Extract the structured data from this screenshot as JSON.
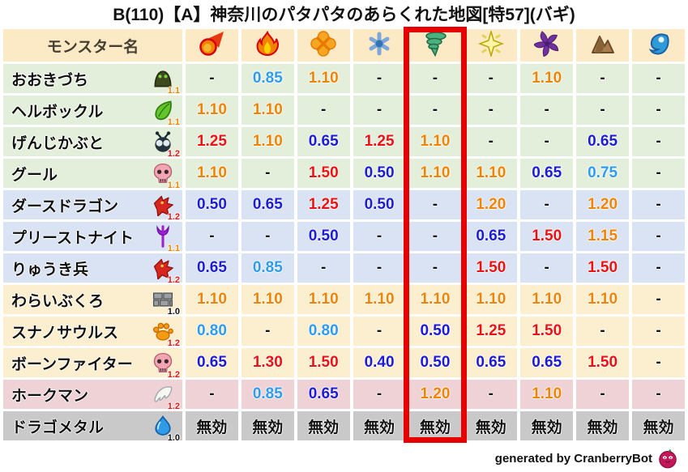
{
  "title": "B(110)【A】神奈川のパタパタのあらくれた地図[特57](バギ)",
  "colors": {
    "or": "#F08300",
    "rd": "#ED1111",
    "lb": "#2D9BF0",
    "db": "#1B1BD8",
    "k": "#111111"
  },
  "row_backgrounds": {
    "header": "#FBEAC5",
    "green": "#E4EFDB",
    "blue": "#DAE3F3",
    "tan": "#FCEFCF",
    "pink": "#EFD2D5",
    "gray": "#C9C9C9"
  },
  "highlight_color": "#E60000",
  "chart_data": {
    "type": "table",
    "title": "B(110)【A】神奈川のパタパタのあらくれた地図[特57](バギ)",
    "name_header": "モンスター名",
    "element_icons": [
      "fireball-icon",
      "flame-icon",
      "burst-icon",
      "snowflake-icon",
      "tornado-icon",
      "sparkle-icon",
      "pinwheel-icon",
      "mountain-icon",
      "wave-icon"
    ],
    "highlighted_column_index": 4,
    "highlighted_column_icon": "tornado-icon",
    "rows": [
      {
        "name": "おおきづち",
        "icon": "hood-monster-icon",
        "level": "1.1",
        "level_color": "or",
        "bg": "green",
        "values": [
          [
            "-",
            "k"
          ],
          [
            "0.85",
            "lb"
          ],
          [
            "1.10",
            "or"
          ],
          [
            "-",
            "k"
          ],
          [
            "-",
            "k"
          ],
          [
            "-",
            "k"
          ],
          [
            "1.10",
            "or"
          ],
          [
            "-",
            "k"
          ],
          [
            "-",
            "k"
          ]
        ]
      },
      {
        "name": "ヘルボックル",
        "icon": "leaf-icon",
        "level": "1.1",
        "level_color": "or",
        "bg": "green",
        "values": [
          [
            "1.10",
            "or"
          ],
          [
            "1.10",
            "or"
          ],
          [
            "-",
            "k"
          ],
          [
            "-",
            "k"
          ],
          [
            "-",
            "k"
          ],
          [
            "-",
            "k"
          ],
          [
            "-",
            "k"
          ],
          [
            "-",
            "k"
          ],
          [
            "-",
            "k"
          ]
        ]
      },
      {
        "name": "げんじかぶと",
        "icon": "beetle-icon",
        "level": "1.2",
        "level_color": "rd",
        "bg": "green",
        "values": [
          [
            "1.25",
            "rd"
          ],
          [
            "1.10",
            "or"
          ],
          [
            "0.65",
            "db"
          ],
          [
            "1.25",
            "rd"
          ],
          [
            "1.10",
            "or"
          ],
          [
            "-",
            "k"
          ],
          [
            "-",
            "k"
          ],
          [
            "0.65",
            "db"
          ],
          [
            "-",
            "k"
          ]
        ]
      },
      {
        "name": "グール",
        "icon": "skull-icon",
        "level": "1.1",
        "level_color": "or",
        "bg": "green",
        "values": [
          [
            "1.10",
            "or"
          ],
          [
            "-",
            "k"
          ],
          [
            "1.50",
            "rd"
          ],
          [
            "0.50",
            "db"
          ],
          [
            "1.10",
            "or"
          ],
          [
            "1.10",
            "or"
          ],
          [
            "0.65",
            "db"
          ],
          [
            "0.75",
            "lb"
          ],
          [
            "-",
            "k"
          ]
        ]
      },
      {
        "name": "ダースドラゴン",
        "icon": "dragon-icon",
        "level": "1.2",
        "level_color": "rd",
        "bg": "blue",
        "values": [
          [
            "0.50",
            "db"
          ],
          [
            "0.65",
            "db"
          ],
          [
            "1.25",
            "rd"
          ],
          [
            "0.50",
            "db"
          ],
          [
            "-",
            "k"
          ],
          [
            "1.20",
            "or"
          ],
          [
            "-",
            "k"
          ],
          [
            "1.20",
            "or"
          ],
          [
            "-",
            "k"
          ]
        ]
      },
      {
        "name": "プリーストナイト",
        "icon": "trident-icon",
        "level": "1.1",
        "level_color": "or",
        "bg": "blue",
        "values": [
          [
            "-",
            "k"
          ],
          [
            "-",
            "k"
          ],
          [
            "0.50",
            "db"
          ],
          [
            "-",
            "k"
          ],
          [
            "-",
            "k"
          ],
          [
            "0.65",
            "db"
          ],
          [
            "1.50",
            "rd"
          ],
          [
            "1.15",
            "or"
          ],
          [
            "-",
            "k"
          ]
        ]
      },
      {
        "name": "りゅうき兵",
        "icon": "dragon-icon",
        "level": "1.2",
        "level_color": "rd",
        "bg": "blue",
        "values": [
          [
            "0.65",
            "db"
          ],
          [
            "0.85",
            "lb"
          ],
          [
            "-",
            "k"
          ],
          [
            "-",
            "k"
          ],
          [
            "-",
            "k"
          ],
          [
            "1.50",
            "rd"
          ],
          [
            "-",
            "k"
          ],
          [
            "1.50",
            "rd"
          ],
          [
            "-",
            "k"
          ]
        ]
      },
      {
        "name": "わらいぶくろ",
        "icon": "brick-wall-icon",
        "level": "1.0",
        "level_color": "k",
        "bg": "tan",
        "values": [
          [
            "1.10",
            "or"
          ],
          [
            "1.10",
            "or"
          ],
          [
            "1.10",
            "or"
          ],
          [
            "1.10",
            "or"
          ],
          [
            "1.10",
            "or"
          ],
          [
            "1.10",
            "or"
          ],
          [
            "1.10",
            "or"
          ],
          [
            "1.10",
            "or"
          ],
          [
            "-",
            "k"
          ]
        ]
      },
      {
        "name": "スナノサウルス",
        "icon": "paw-icon",
        "level": "1.2",
        "level_color": "rd",
        "bg": "tan",
        "values": [
          [
            "0.80",
            "lb"
          ],
          [
            "-",
            "k"
          ],
          [
            "0.80",
            "lb"
          ],
          [
            "-",
            "k"
          ],
          [
            "0.50",
            "db"
          ],
          [
            "1.25",
            "rd"
          ],
          [
            "1.50",
            "rd"
          ],
          [
            "-",
            "k"
          ],
          [
            "-",
            "k"
          ]
        ]
      },
      {
        "name": "ボーンファイター",
        "icon": "skull-icon",
        "level": "1.2",
        "level_color": "rd",
        "bg": "tan",
        "values": [
          [
            "0.65",
            "db"
          ],
          [
            "1.30",
            "rd"
          ],
          [
            "1.50",
            "rd"
          ],
          [
            "0.40",
            "db"
          ],
          [
            "0.50",
            "db"
          ],
          [
            "0.65",
            "db"
          ],
          [
            "0.65",
            "db"
          ],
          [
            "1.50",
            "rd"
          ],
          [
            "-",
            "k"
          ]
        ]
      },
      {
        "name": "ホークマン",
        "icon": "wing-icon",
        "level": "1.2",
        "level_color": "rd",
        "bg": "pink",
        "values": [
          [
            "-",
            "k"
          ],
          [
            "0.85",
            "lb"
          ],
          [
            "0.65",
            "db"
          ],
          [
            "-",
            "k"
          ],
          [
            "1.20",
            "or"
          ],
          [
            "-",
            "k"
          ],
          [
            "1.10",
            "or"
          ],
          [
            "-",
            "k"
          ],
          [
            "-",
            "k"
          ]
        ]
      },
      {
        "name": "ドラゴメタル",
        "icon": "slime-icon",
        "level": "1.0",
        "level_color": "k",
        "bg": "gray",
        "values": [
          [
            "無効",
            "k"
          ],
          [
            "無効",
            "k"
          ],
          [
            "無効",
            "k"
          ],
          [
            "無効",
            "k"
          ],
          [
            "無効",
            "k"
          ],
          [
            "無効",
            "k"
          ],
          [
            "無効",
            "k"
          ],
          [
            "無効",
            "k"
          ],
          [
            "無効",
            "k"
          ]
        ]
      }
    ]
  },
  "footer": {
    "credit": "generated by CranberryBot",
    "icon": "cranberry-icon"
  }
}
